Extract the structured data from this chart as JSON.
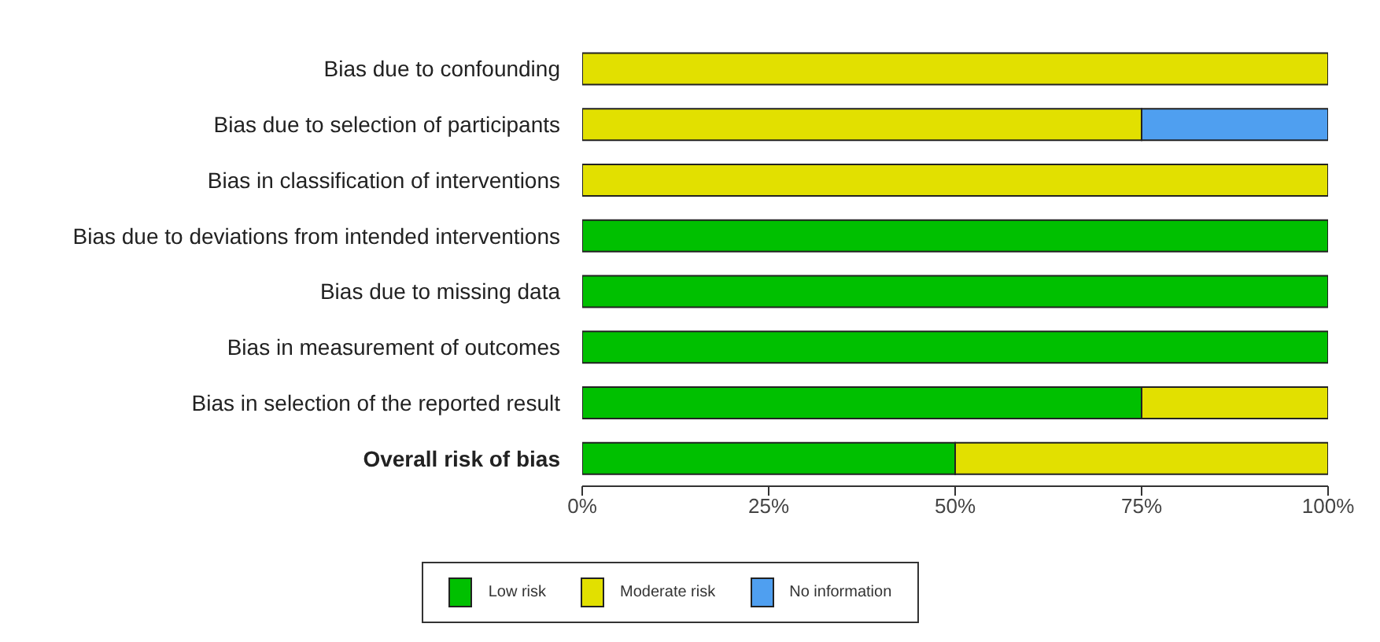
{
  "chart_data": {
    "type": "bar",
    "orientation": "horizontal",
    "stacked": true,
    "categories": [
      "Bias due to confounding",
      "Bias due to selection of participants",
      "Bias in classification of interventions",
      "Bias due to deviations from intended interventions",
      "Bias due to missing data",
      "Bias in measurement of outcomes",
      "Bias in selection of the reported result",
      "Overall risk of bias"
    ],
    "series": [
      {
        "name": "Low risk",
        "color": "#00c000",
        "values": [
          0,
          0,
          0,
          100,
          100,
          100,
          75,
          50
        ]
      },
      {
        "name": "Moderate risk",
        "color": "#e2e000",
        "values": [
          100,
          75,
          100,
          0,
          0,
          0,
          25,
          50
        ]
      },
      {
        "name": "No information",
        "color": "#4f9ff0",
        "values": [
          0,
          25,
          0,
          0,
          0,
          0,
          0,
          0
        ]
      }
    ],
    "xlim": [
      0,
      100
    ],
    "xticks": [
      {
        "value": 0,
        "label": "0%"
      },
      {
        "value": 25,
        "label": "25%"
      },
      {
        "value": 50,
        "label": "50%"
      },
      {
        "value": 75,
        "label": "75%"
      },
      {
        "value": 100,
        "label": "100%"
      }
    ],
    "grid": false,
    "legend": "bottom"
  }
}
